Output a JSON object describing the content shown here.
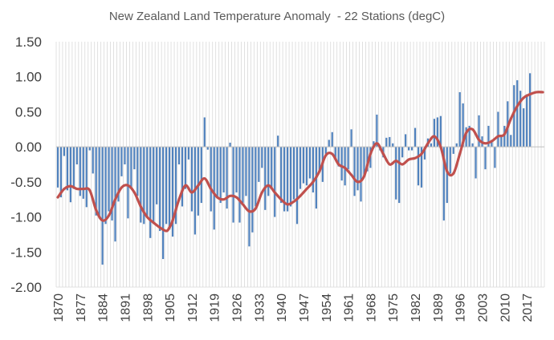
{
  "chart_data": {
    "type": "bar",
    "title": "New Zealand Land Temperature Anomaly  - 22 Stations (degC)",
    "xlabel": "",
    "ylabel": "",
    "ylim": [
      -2.0,
      1.5
    ],
    "yticks": [
      "1.50",
      "1.00",
      "0.50",
      "0.00",
      "-0.50",
      "-1.00",
      "-1.50",
      "-2.00"
    ],
    "x_tick_labels": [
      "1870",
      "1877",
      "1884",
      "1891",
      "1898",
      "1905",
      "1912",
      "1919",
      "1926",
      "1933",
      "1940",
      "1947",
      "1954",
      "1961",
      "1968",
      "1975",
      "1982",
      "1989",
      "1996",
      "2003",
      "2010",
      "2017"
    ],
    "x_start": 1870,
    "x_end": 2022,
    "grid": "vertical",
    "legend": "none",
    "colors": {
      "bar": "#4f81bd",
      "smooth": "#c0504d",
      "grid": "#d9d9d9"
    },
    "series": [
      {
        "kind": "bar",
        "values": [
          -0.58,
          -0.72,
          -0.13,
          -0.62,
          -0.79,
          -0.6,
          -0.25,
          -0.7,
          -0.74,
          -0.86,
          -0.05,
          -0.38,
          -0.98,
          -1.02,
          -1.68,
          -1.1,
          -0.92,
          -1.05,
          -1.35,
          -0.78,
          -0.42,
          -0.25,
          -1.02,
          -0.58,
          -0.32,
          -0.7,
          -1.08,
          -1.1,
          -1.0,
          -1.3,
          -1.1,
          -0.82,
          -1.2,
          -1.6,
          -1.1,
          -1.18,
          -1.28,
          -1.1,
          -0.25,
          -0.85,
          -0.6,
          -0.18,
          -0.92,
          -1.25,
          -0.98,
          -0.8,
          0.42,
          -0.04,
          -0.92,
          -1.18,
          -0.72,
          -0.8,
          -0.65,
          -0.88,
          0.06,
          -1.08,
          -0.65,
          -1.08,
          -0.8,
          -0.7,
          -1.42,
          -1.22,
          -0.85,
          -0.5,
          -0.3,
          -0.9,
          -0.7,
          -0.6,
          -1.0,
          0.16,
          -0.8,
          -0.92,
          -0.92,
          -0.85,
          -0.75,
          -1.1,
          -0.6,
          -0.52,
          -0.55,
          -0.45,
          -0.65,
          -0.88,
          -0.35,
          -0.5,
          -0.1,
          0.1,
          0.21,
          -0.18,
          -0.28,
          -0.48,
          -0.55,
          -0.32,
          0.25,
          -0.7,
          -0.62,
          -0.78,
          -0.42,
          -0.35,
          -0.3,
          0.08,
          0.46,
          -0.05,
          -0.15,
          0.13,
          0.14,
          0.05,
          -0.75,
          -0.8,
          -0.15,
          0.18,
          -0.05,
          -0.05,
          0.27,
          -0.55,
          -0.58,
          -0.18,
          0.12,
          0.05,
          0.4,
          0.42,
          0.44,
          -1.05,
          -0.8,
          -0.38,
          -0.1,
          0.05,
          0.78,
          0.62,
          0.28,
          0.3,
          0.05,
          -0.45,
          0.45,
          0.15,
          -0.32,
          0.3,
          0.1,
          -0.3,
          0.5,
          0.15,
          0.3,
          0.65,
          0.17,
          0.88,
          0.95,
          0.8,
          0.55,
          0.75,
          1.05
        ]
      },
      {
        "kind": "smoothed-line",
        "points": [
          [
            1870,
            -0.72
          ],
          [
            1872,
            -0.6
          ],
          [
            1874,
            -0.56
          ],
          [
            1876,
            -0.6
          ],
          [
            1878,
            -0.6
          ],
          [
            1880,
            -0.62
          ],
          [
            1882,
            -0.9
          ],
          [
            1884,
            -1.05
          ],
          [
            1886,
            -0.98
          ],
          [
            1888,
            -0.75
          ],
          [
            1890,
            -0.58
          ],
          [
            1892,
            -0.55
          ],
          [
            1894,
            -0.65
          ],
          [
            1896,
            -0.85
          ],
          [
            1898,
            -1.0
          ],
          [
            1900,
            -1.08
          ],
          [
            1902,
            -1.15
          ],
          [
            1904,
            -1.2
          ],
          [
            1905,
            -1.15
          ],
          [
            1906,
            -1.05
          ],
          [
            1908,
            -0.75
          ],
          [
            1910,
            -0.55
          ],
          [
            1912,
            -0.65
          ],
          [
            1914,
            -0.55
          ],
          [
            1916,
            -0.45
          ],
          [
            1918,
            -0.6
          ],
          [
            1920,
            -0.72
          ],
          [
            1922,
            -0.75
          ],
          [
            1924,
            -0.7
          ],
          [
            1926,
            -0.72
          ],
          [
            1928,
            -0.82
          ],
          [
            1930,
            -0.92
          ],
          [
            1932,
            -0.88
          ],
          [
            1934,
            -0.65
          ],
          [
            1936,
            -0.55
          ],
          [
            1938,
            -0.65
          ],
          [
            1940,
            -0.75
          ],
          [
            1942,
            -0.82
          ],
          [
            1944,
            -0.78
          ],
          [
            1946,
            -0.7
          ],
          [
            1948,
            -0.6
          ],
          [
            1950,
            -0.5
          ],
          [
            1952,
            -0.35
          ],
          [
            1954,
            -0.12
          ],
          [
            1956,
            -0.1
          ],
          [
            1958,
            -0.25
          ],
          [
            1960,
            -0.3
          ],
          [
            1962,
            -0.4
          ],
          [
            1964,
            -0.5
          ],
          [
            1966,
            -0.42
          ],
          [
            1968,
            -0.1
          ],
          [
            1970,
            0.05
          ],
          [
            1972,
            -0.1
          ],
          [
            1974,
            -0.25
          ],
          [
            1976,
            -0.2
          ],
          [
            1978,
            -0.25
          ],
          [
            1980,
            -0.18
          ],
          [
            1982,
            -0.16
          ],
          [
            1984,
            -0.1
          ],
          [
            1986,
            0.05
          ],
          [
            1988,
            0.15
          ],
          [
            1990,
            0.0
          ],
          [
            1992,
            -0.35
          ],
          [
            1994,
            -0.38
          ],
          [
            1996,
            -0.1
          ],
          [
            1998,
            0.2
          ],
          [
            2000,
            0.25
          ],
          [
            2002,
            0.1
          ],
          [
            2004,
            0.05
          ],
          [
            2006,
            0.08
          ],
          [
            2008,
            0.15
          ],
          [
            2010,
            0.18
          ],
          [
            2012,
            0.4
          ],
          [
            2014,
            0.58
          ],
          [
            2016,
            0.7
          ],
          [
            2018,
            0.75
          ],
          [
            2020,
            0.78
          ],
          [
            2022,
            0.78
          ]
        ]
      }
    ]
  }
}
